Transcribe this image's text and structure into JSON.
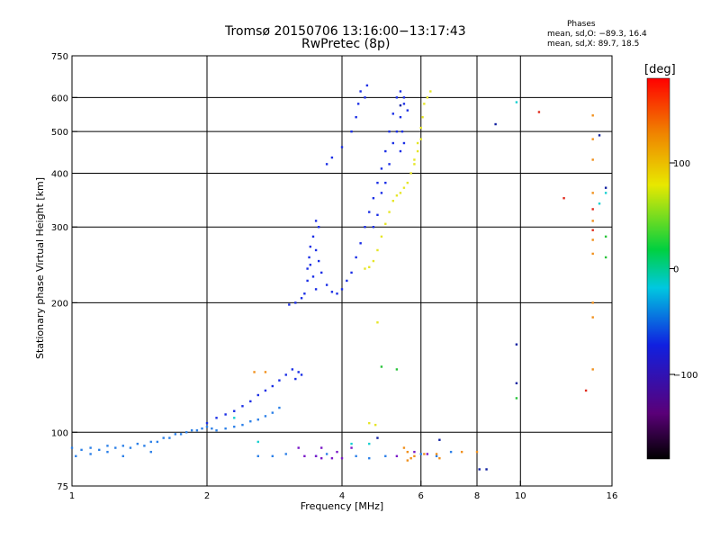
{
  "header": {
    "title_line1": "Tromsø 20150706 13:16:00−13:17:43",
    "title_line2": "RwPretec (8p)"
  },
  "phases": {
    "heading": "Phases",
    "o_line": "mean, sd,O: −89.3, 16.4",
    "x_line": "mean, sd,X:  89.7, 18.5"
  },
  "colorbar": {
    "unit": "[deg]",
    "ticks": [
      "100",
      "0",
      "−100"
    ],
    "tick_values": [
      100,
      0,
      -100
    ],
    "range": [
      -180,
      180
    ],
    "colormap": "rainbow-black-to-red"
  },
  "chart_data": {
    "type": "scatter",
    "xlabel": "Frequency [MHz]",
    "ylabel": "Stationary phase Virtual Height [km]",
    "x_scale": "log",
    "y_scale": "log",
    "xlim": [
      1,
      16
    ],
    "ylim": [
      75,
      750
    ],
    "x_ticks": [
      1,
      2,
      4,
      6,
      8,
      10,
      16
    ],
    "x_tick_labels": [
      "1",
      "2",
      "4",
      "6",
      "8",
      "10",
      "16"
    ],
    "y_ticks": [
      75,
      100,
      200,
      300,
      400,
      500,
      600,
      750
    ],
    "y_tick_labels": [
      "75",
      "100",
      "200",
      "300",
      "400",
      "500",
      "600",
      "750"
    ],
    "grid_x": [
      2,
      4,
      6,
      8,
      10
    ],
    "grid_y": [
      100,
      200,
      300,
      400,
      500,
      600
    ],
    "grid": true,
    "series": [
      {
        "color": "#1a2ee6",
        "points": [
          [
            3.05,
            198
          ],
          [
            3.15,
            200
          ],
          [
            3.25,
            205
          ],
          [
            3.3,
            210
          ],
          [
            3.35,
            225
          ],
          [
            3.35,
            240
          ],
          [
            3.38,
            255
          ],
          [
            3.4,
            270
          ],
          [
            3.45,
            285
          ],
          [
            3.5,
            265
          ],
          [
            3.55,
            250
          ],
          [
            3.6,
            235
          ],
          [
            3.7,
            220
          ],
          [
            3.8,
            212
          ],
          [
            3.9,
            210
          ],
          [
            4.0,
            215
          ],
          [
            4.1,
            225
          ],
          [
            4.2,
            235
          ],
          [
            4.3,
            255
          ],
          [
            4.4,
            275
          ],
          [
            4.5,
            300
          ],
          [
            4.6,
            325
          ],
          [
            4.7,
            350
          ],
          [
            4.8,
            380
          ],
          [
            4.9,
            410
          ],
          [
            5.0,
            450
          ],
          [
            5.1,
            500
          ],
          [
            5.2,
            550
          ],
          [
            5.3,
            600
          ],
          [
            5.4,
            620
          ],
          [
            5.5,
            600
          ],
          [
            5.6,
            560
          ],
          [
            3.5,
            310
          ],
          [
            3.55,
            300
          ],
          [
            3.4,
            245
          ],
          [
            3.45,
            230
          ],
          [
            3.5,
            215
          ],
          [
            4.7,
            300
          ],
          [
            4.8,
            320
          ],
          [
            4.9,
            360
          ],
          [
            5.0,
            380
          ],
          [
            5.1,
            420
          ],
          [
            5.2,
            470
          ],
          [
            5.3,
            500
          ],
          [
            5.4,
            540
          ],
          [
            5.5,
            580
          ],
          [
            5.45,
            500
          ],
          [
            5.5,
            470
          ],
          [
            5.4,
            450
          ],
          [
            3.7,
            420
          ],
          [
            3.8,
            435
          ],
          [
            4.0,
            460
          ],
          [
            4.2,
            500
          ],
          [
            4.3,
            540
          ],
          [
            4.35,
            580
          ],
          [
            4.4,
            620
          ],
          [
            4.5,
            600
          ],
          [
            4.55,
            640
          ],
          [
            2.0,
            105
          ],
          [
            2.1,
            108
          ],
          [
            2.2,
            110
          ],
          [
            2.3,
            112
          ],
          [
            2.4,
            115
          ],
          [
            2.5,
            118
          ],
          [
            2.6,
            122
          ],
          [
            2.7,
            125
          ],
          [
            2.8,
            128
          ],
          [
            2.9,
            132
          ],
          [
            3.0,
            136
          ],
          [
            3.1,
            140
          ],
          [
            3.15,
            133
          ],
          [
            3.2,
            138
          ],
          [
            3.25,
            136
          ]
        ]
      },
      {
        "color": "#2c80e8",
        "points": [
          [
            1.0,
            92
          ],
          [
            1.05,
            91
          ],
          [
            1.1,
            92
          ],
          [
            1.15,
            91
          ],
          [
            1.2,
            93
          ],
          [
            1.25,
            92
          ],
          [
            1.3,
            93
          ],
          [
            1.35,
            92
          ],
          [
            1.4,
            94
          ],
          [
            1.45,
            93
          ],
          [
            1.5,
            95
          ],
          [
            1.55,
            95
          ],
          [
            1.6,
            97
          ],
          [
            1.65,
            97
          ],
          [
            1.7,
            99
          ],
          [
            1.75,
            99
          ],
          [
            1.8,
            100
          ],
          [
            1.85,
            101
          ],
          [
            1.9,
            101
          ],
          [
            1.95,
            102
          ],
          [
            2.0,
            103
          ],
          [
            2.05,
            102
          ],
          [
            2.1,
            101
          ],
          [
            2.2,
            102
          ],
          [
            2.3,
            103
          ],
          [
            2.4,
            104
          ],
          [
            2.5,
            106
          ],
          [
            2.6,
            107
          ],
          [
            2.7,
            109
          ],
          [
            2.8,
            111
          ],
          [
            2.9,
            114
          ],
          [
            1.02,
            88
          ],
          [
            1.1,
            89
          ],
          [
            1.2,
            90
          ],
          [
            1.3,
            88
          ],
          [
            1.5,
            90
          ],
          [
            2.6,
            88
          ],
          [
            2.8,
            88
          ],
          [
            3.0,
            89
          ],
          [
            4.3,
            88
          ],
          [
            4.6,
            87
          ],
          [
            5.0,
            88
          ],
          [
            6.0,
            89
          ],
          [
            6.5,
            88
          ],
          [
            7.0,
            90
          ],
          [
            3.5,
            88
          ],
          [
            3.7,
            89
          ]
        ]
      },
      {
        "color": "#e6e626",
        "points": [
          [
            4.5,
            240
          ],
          [
            4.6,
            242
          ],
          [
            4.7,
            250
          ],
          [
            4.8,
            265
          ],
          [
            4.9,
            285
          ],
          [
            5.0,
            305
          ],
          [
            5.1,
            325
          ],
          [
            5.2,
            345
          ],
          [
            5.3,
            355
          ],
          [
            5.4,
            360
          ],
          [
            5.5,
            370
          ],
          [
            5.6,
            380
          ],
          [
            5.7,
            400
          ],
          [
            5.8,
            430
          ],
          [
            5.9,
            470
          ],
          [
            6.0,
            510
          ],
          [
            6.05,
            540
          ],
          [
            6.1,
            580
          ],
          [
            6.2,
            600
          ],
          [
            6.3,
            620
          ],
          [
            5.8,
            420
          ],
          [
            5.9,
            450
          ],
          [
            6.0,
            480
          ],
          [
            4.6,
            105
          ],
          [
            4.75,
            104
          ],
          [
            4.8,
            180
          ]
        ]
      },
      {
        "color": "#7a18c8",
        "points": [
          [
            3.3,
            88
          ],
          [
            3.5,
            88
          ],
          [
            3.6,
            87
          ],
          [
            3.8,
            87
          ],
          [
            4.0,
            87
          ],
          [
            3.2,
            92
          ],
          [
            3.6,
            92
          ],
          [
            3.9,
            90
          ],
          [
            4.2,
            92
          ],
          [
            5.3,
            88
          ],
          [
            5.8,
            90
          ],
          [
            6.2,
            89
          ]
        ]
      },
      {
        "color": "#f0901c",
        "points": [
          [
            5.6,
            86
          ],
          [
            5.7,
            87
          ],
          [
            5.8,
            88
          ],
          [
            5.6,
            90
          ],
          [
            5.5,
            92
          ],
          [
            6.1,
            89
          ],
          [
            6.5,
            89
          ],
          [
            6.6,
            87
          ],
          [
            7.4,
            90
          ],
          [
            8.0,
            90
          ],
          [
            2.7,
            138
          ],
          [
            2.55,
            138
          ],
          [
            14.5,
            545
          ],
          [
            14.5,
            480
          ],
          [
            14.5,
            430
          ],
          [
            14.5,
            360
          ],
          [
            14.5,
            310
          ],
          [
            14.5,
            280
          ],
          [
            14.5,
            260
          ],
          [
            14.5,
            200
          ],
          [
            14.5,
            185
          ],
          [
            14.5,
            140
          ]
        ]
      },
      {
        "color": "#e02a1c",
        "points": [
          [
            11.0,
            555
          ],
          [
            12.5,
            350
          ],
          [
            14.5,
            330
          ],
          [
            14.5,
            295
          ],
          [
            14.0,
            125
          ]
        ]
      },
      {
        "color": "#28c43a",
        "points": [
          [
            5.3,
            140
          ],
          [
            4.9,
            142
          ],
          [
            15.5,
            255
          ],
          [
            15.5,
            285
          ],
          [
            9.8,
            120
          ]
        ]
      },
      {
        "color": "#18d0d0",
        "points": [
          [
            9.8,
            585
          ],
          [
            15.0,
            340
          ],
          [
            2.3,
            108
          ],
          [
            2.6,
            95
          ],
          [
            4.2,
            94
          ],
          [
            4.6,
            94
          ],
          [
            15.5,
            360
          ]
        ]
      },
      {
        "color": "#1020a0",
        "points": [
          [
            8.8,
            520
          ],
          [
            9.8,
            160
          ],
          [
            9.8,
            130
          ],
          [
            15.0,
            490
          ],
          [
            15.5,
            370
          ],
          [
            8.1,
            82
          ],
          [
            8.4,
            82
          ],
          [
            5.4,
            575
          ],
          [
            6.6,
            96
          ],
          [
            4.8,
            97
          ]
        ]
      }
    ]
  }
}
